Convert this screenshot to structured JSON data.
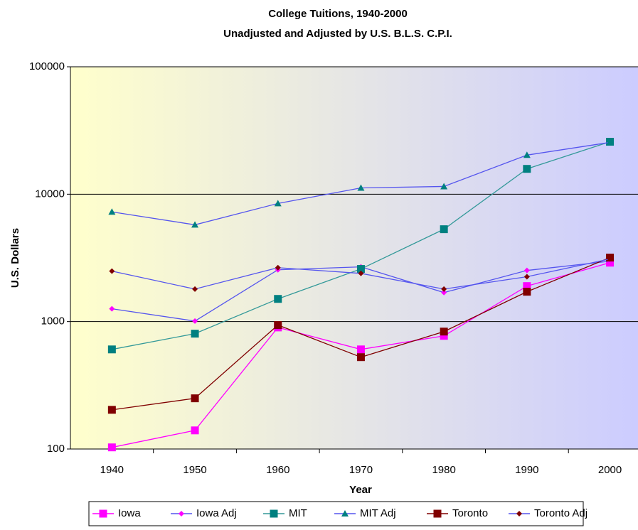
{
  "chart_data": {
    "type": "line",
    "title": "College Tuitions, 1940-2000",
    "subtitle": "Unadjusted and Adjusted by U.S. B.L.S. C.P.I.",
    "x_label": "Year",
    "y_label": "U.S. Dollars",
    "categories": [
      "1940",
      "1950",
      "1960",
      "1970",
      "1980",
      "1990",
      "2000"
    ],
    "log_scale": true,
    "ylim": [
      100,
      100000
    ],
    "yticks": [
      100,
      1000,
      10000,
      100000
    ],
    "grid": true,
    "legend": "bottom",
    "series": [
      {
        "name": "Iowa",
        "color": "#ff00ff",
        "marker_color": "#ff00ff",
        "marker": "square",
        "values": [
          103,
          140,
          900,
          605,
          773,
          1900,
          2900
        ]
      },
      {
        "name": "Iowa Adj",
        "color": "#5555ee",
        "marker_color": "#ff00ff",
        "marker": "diamond",
        "values": [
          1260,
          1010,
          2550,
          2690,
          1690,
          2520,
          2980
        ]
      },
      {
        "name": "MIT",
        "color": "#339999",
        "marker_color": "#008080",
        "marker": "square",
        "values": [
          605,
          804,
          1507,
          2590,
          5310,
          15800,
          25800
        ]
      },
      {
        "name": "MIT Adj",
        "color": "#5555ee",
        "marker_color": "#008080",
        "marker": "triangle",
        "values": [
          7260,
          5750,
          8460,
          11200,
          11500,
          20270,
          25500
        ]
      },
      {
        "name": "Toronto",
        "color": "#800000",
        "marker_color": "#800000",
        "marker": "square",
        "values": [
          203,
          250,
          940,
          526,
          835,
          1715,
          3180
        ]
      },
      {
        "name": "Toronto Adj",
        "color": "#5555ee",
        "marker_color": "#800000",
        "marker": "diamond",
        "values": [
          2490,
          1800,
          2650,
          2390,
          1800,
          2250,
          3100
        ]
      }
    ]
  }
}
